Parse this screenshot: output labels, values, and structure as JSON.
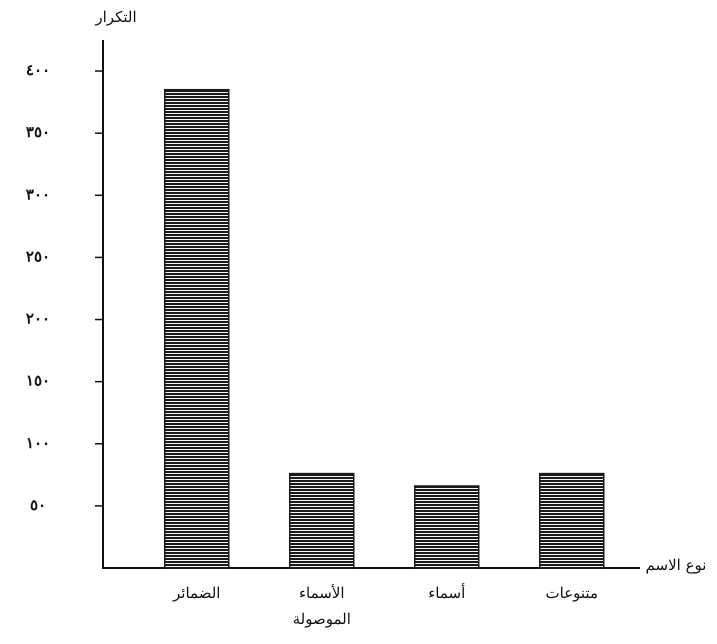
{
  "chart_data": {
    "type": "bar",
    "y_label": "التكرار",
    "x_label": "نوع الاسم",
    "categories": [
      "الضمائر",
      "الأسماء الموصولة",
      "أسماء",
      "متنوعات"
    ],
    "values": [
      385,
      76,
      66,
      76
    ],
    "color": "#1a1a1a",
    "ylim": [
      0,
      425
    ],
    "yticks": [
      {
        "value": 50,
        "label": "٥٠"
      },
      {
        "value": 100,
        "label": "١٠٠"
      },
      {
        "value": 150,
        "label": "١٥٠"
      },
      {
        "value": 200,
        "label": "٢٠٠"
      },
      {
        "value": 250,
        "label": "٢٥٠"
      },
      {
        "value": 300,
        "label": "٣٠٠"
      },
      {
        "value": 350,
        "label": "٣٥٠"
      },
      {
        "value": 400,
        "label": "٤٠٠"
      }
    ]
  }
}
